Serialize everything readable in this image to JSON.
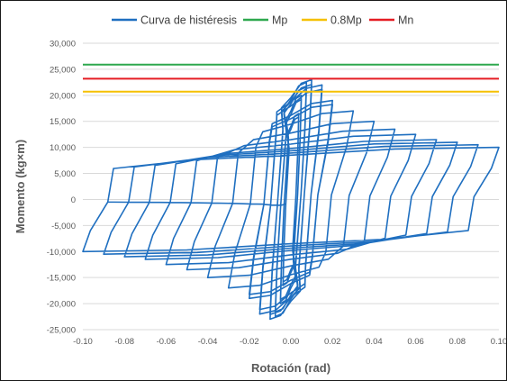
{
  "chart_data": {
    "type": "line",
    "title": "",
    "xlabel": "Rotación (rad)",
    "ylabel": "Momento (kg×m)",
    "xlim": [
      -0.1,
      0.1
    ],
    "ylim": [
      -25000,
      30000
    ],
    "x_ticks": [
      "-0.10",
      "-0.08",
      "-0.06",
      "-0.04",
      "-0.02",
      "0.00",
      "0.02",
      "0.04",
      "0.06",
      "0.08",
      "0.10"
    ],
    "y_ticks": [
      "30,000",
      "25,000",
      "20,000",
      "15,000",
      "10,000",
      "5,000",
      "0",
      "-5,000",
      "-10,000",
      "-15,000",
      "-20,000",
      "-25,000"
    ],
    "grid": "horizontal",
    "legend_position": "top",
    "series": [
      {
        "name": "Curva de histéresis",
        "color": "#1f6fc0",
        "cycle_amplitudes": [
          0.00375,
          0.005,
          0.0075,
          0.01,
          0.015,
          0.02,
          0.03,
          0.04,
          0.05,
          0.06,
          0.07,
          0.08,
          0.09,
          0.1
        ],
        "cycle_peak_moments": [
          16500,
          20000,
          22500,
          23000,
          22000,
          19000,
          17000,
          15000,
          13500,
          12500,
          11500,
          11000,
          10500,
          10000
        ]
      },
      {
        "name": "Mp",
        "color": "#2ea84e",
        "x": [
          -0.1,
          0.1
        ],
        "y": [
          25900,
          25900
        ]
      },
      {
        "name": "0.8Mp",
        "color": "#f5c000",
        "x": [
          -0.1,
          0.1
        ],
        "y": [
          20700,
          20700
        ]
      },
      {
        "name": "Mn",
        "color": "#e51c23",
        "x": [
          -0.1,
          0.1
        ],
        "y": [
          23200,
          23200
        ]
      }
    ]
  }
}
